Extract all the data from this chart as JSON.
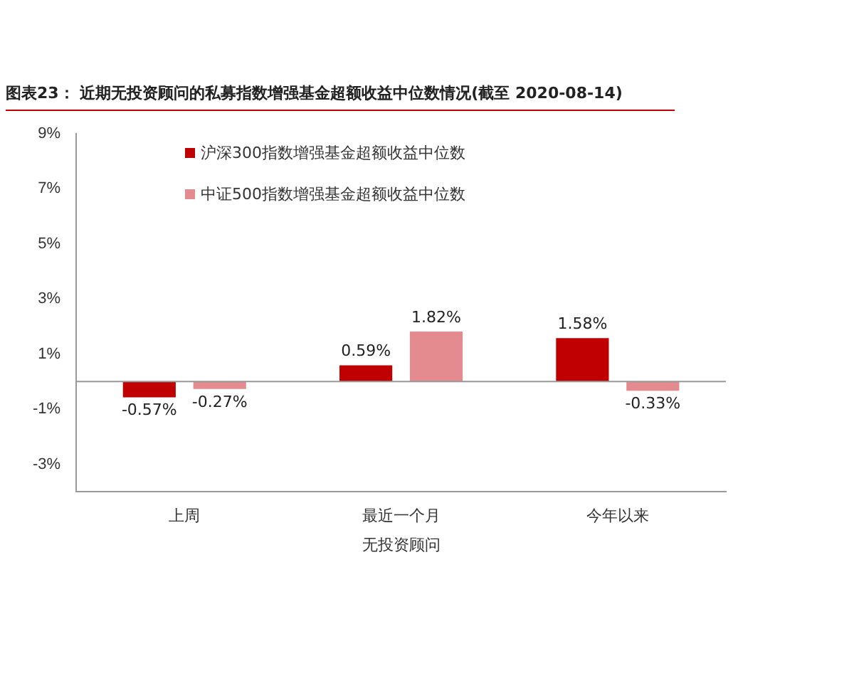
{
  "chart_data": {
    "type": "bar",
    "title": "图表23：  近期无投资顾问的私募指数增强基金超额收益中位数情况(截至 2020-08-14)",
    "xlabel": "无投资顾问",
    "categories": [
      "上周",
      "最近一个月",
      "今年以来"
    ],
    "series": [
      {
        "name": "沪深300指数增强基金超额收益中位数",
        "color": "#c00000",
        "values": [
          -0.57,
          0.59,
          1.58
        ],
        "value_labels": [
          "-0.57%",
          "0.59%",
          "1.58%"
        ]
      },
      {
        "name": "中证500指数增强基金超额收益中位数",
        "color": "#e38b8f",
        "values": [
          -0.27,
          1.82,
          -0.33
        ],
        "value_labels": [
          "-0.27%",
          "1.82%",
          "-0.33%"
        ]
      }
    ],
    "ylim": [
      -4,
      9
    ],
    "yticks": [
      {
        "value": -3,
        "label": "-3%"
      },
      {
        "value": -1,
        "label": "-1%"
      },
      {
        "value": 1,
        "label": "1%"
      },
      {
        "value": 3,
        "label": "3%"
      },
      {
        "value": 5,
        "label": "5%"
      },
      {
        "value": 7,
        "label": "7%"
      },
      {
        "value": 9,
        "label": "9%"
      }
    ],
    "grid": false,
    "legend": "top left"
  }
}
